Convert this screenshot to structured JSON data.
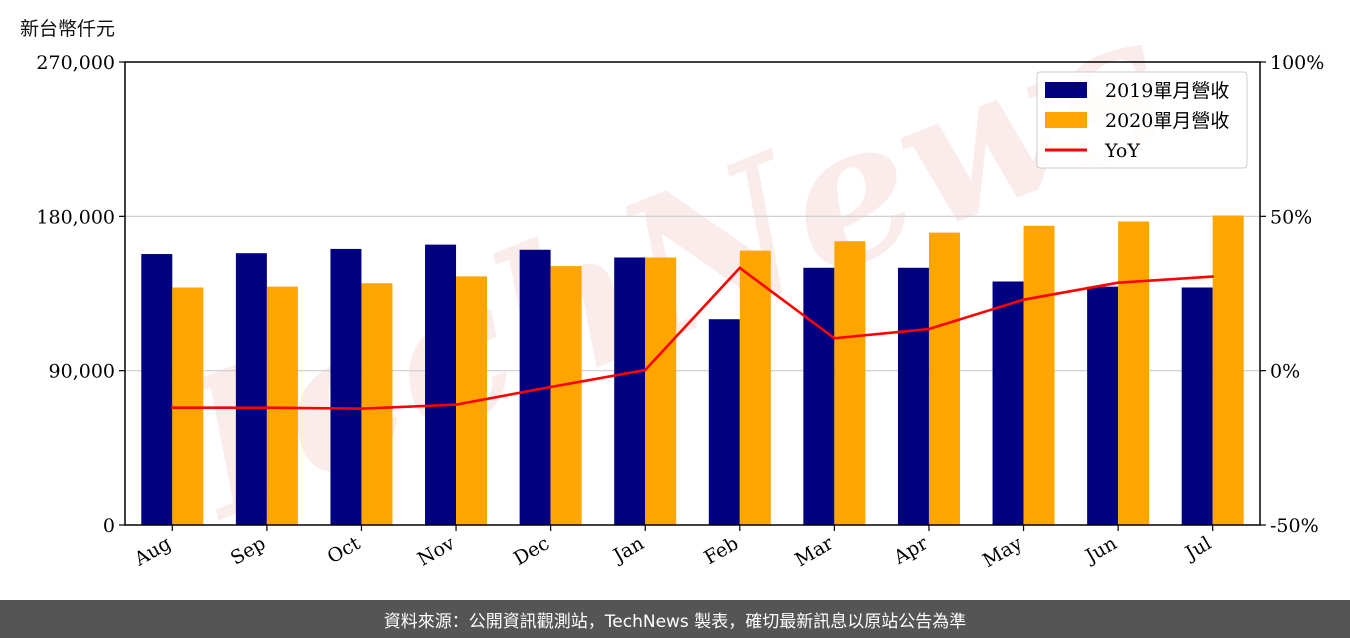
{
  "unit_label": "新台幣仟元",
  "footer_text": "資料來源：公開資訊觀測站，TechNews 製表，確切最新訊息以原站公告為準",
  "watermark": "TechNews",
  "chart_data": {
    "type": "bar",
    "categories": [
      "Aug",
      "Sep",
      "Oct",
      "Nov",
      "Dec",
      "Jan",
      "Feb",
      "Mar",
      "Apr",
      "May",
      "Jun",
      "Jul"
    ],
    "series": [
      {
        "name": "2019單月營收",
        "type": "bar",
        "color": "#000080",
        "values": [
          158000,
          158500,
          161000,
          163500,
          160500,
          156000,
          120000,
          150000,
          150000,
          142000,
          139000,
          138500
        ]
      },
      {
        "name": "2020單月營收",
        "type": "bar",
        "color": "#FFA500",
        "values": [
          138500,
          139000,
          141000,
          145000,
          151000,
          156000,
          160000,
          165500,
          170500,
          174500,
          177000,
          180500
        ]
      },
      {
        "name": "YoY",
        "type": "line",
        "axis": "right",
        "color": "#FF0000",
        "values": [
          -12.0,
          -12.0,
          -12.3,
          -11.0,
          -5.3,
          0.2,
          33.3,
          10.5,
          13.5,
          23.0,
          28.5,
          30.5
        ]
      }
    ],
    "y_left": {
      "ylim": [
        0,
        270000
      ],
      "ticks": [
        0,
        90000,
        180000,
        270000
      ],
      "tick_labels": [
        "0",
        "90,000",
        "180,000",
        "270,000"
      ]
    },
    "y_right": {
      "ylim": [
        -50,
        100
      ],
      "ticks": [
        -50,
        0,
        50,
        100
      ],
      "tick_labels": [
        "-50%",
        "0%",
        "50%",
        "100%"
      ]
    },
    "grid": "horizontal",
    "legend_placement": "top-right"
  }
}
